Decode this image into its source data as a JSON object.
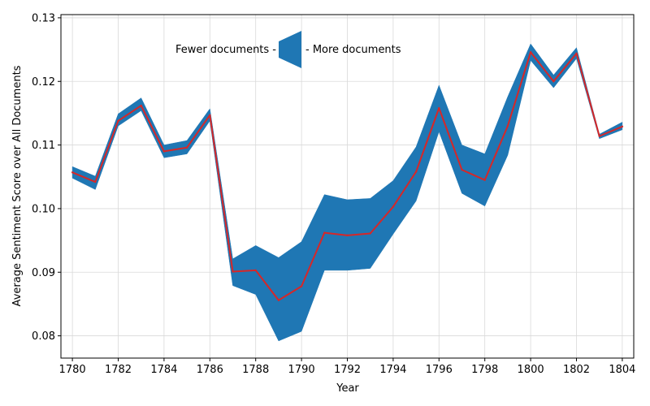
{
  "chart_data": {
    "type": "line",
    "title": "",
    "xlabel": "Year",
    "ylabel": "Average Sentiment Score over All Documents",
    "xlim": [
      1779.5,
      1804.5
    ],
    "ylim": [
      0.0765,
      0.1305
    ],
    "x_ticks": [
      1780,
      1782,
      1784,
      1786,
      1788,
      1790,
      1792,
      1794,
      1796,
      1798,
      1800,
      1802,
      1804
    ],
    "x_tick_labels": [
      "1780",
      "1782",
      "1784",
      "1786",
      "1788",
      "1790",
      "1792",
      "1794",
      "1796",
      "1798",
      "1800",
      "1802",
      "1804"
    ],
    "y_ticks": [
      0.08,
      0.09,
      0.1,
      0.11,
      0.12,
      0.13
    ],
    "y_tick_labels": [
      "0.08",
      "0.09",
      "0.10",
      "0.11",
      "0.12",
      "0.13"
    ],
    "grid": true,
    "line_color": "#d62728",
    "band_color": "#1f77b4",
    "x": [
      1780,
      1781,
      1782,
      1783,
      1784,
      1785,
      1786,
      1787,
      1788,
      1789,
      1790,
      1791,
      1792,
      1793,
      1794,
      1795,
      1796,
      1797,
      1798,
      1799,
      1800,
      1801,
      1802,
      1803,
      1804
    ],
    "series": [
      {
        "values": [
          0.1057,
          0.1042,
          0.1138,
          0.1162,
          0.109,
          0.1096,
          0.1147,
          0.0901,
          0.0903,
          0.0856,
          0.0878,
          0.0962,
          0.0958,
          0.0961,
          0.1003,
          0.1058,
          0.1158,
          0.1061,
          0.1045,
          0.113,
          0.1246,
          0.12,
          0.1244,
          0.1114,
          0.1129
        ],
        "upper": [
          0.1066,
          0.1051,
          0.1149,
          0.1174,
          0.11,
          0.1107,
          0.1157,
          0.0921,
          0.0942,
          0.0923,
          0.0948,
          0.1022,
          0.1014,
          0.1016,
          0.1044,
          0.1097,
          0.1194,
          0.11,
          0.1086,
          0.1176,
          0.1259,
          0.121,
          0.1253,
          0.1117,
          0.1136
        ],
        "lower": [
          0.1048,
          0.103,
          0.113,
          0.1154,
          0.108,
          0.1086,
          0.1138,
          0.0879,
          0.0865,
          0.0792,
          0.0807,
          0.0903,
          0.0903,
          0.0906,
          0.096,
          0.1012,
          0.1121,
          0.1024,
          0.1004,
          0.1084,
          0.1233,
          0.119,
          0.1236,
          0.111,
          0.1124
        ]
      }
    ],
    "legend": {
      "left_label": "Fewer documents -",
      "right_label": "- More documents",
      "placement": "top-center"
    }
  }
}
